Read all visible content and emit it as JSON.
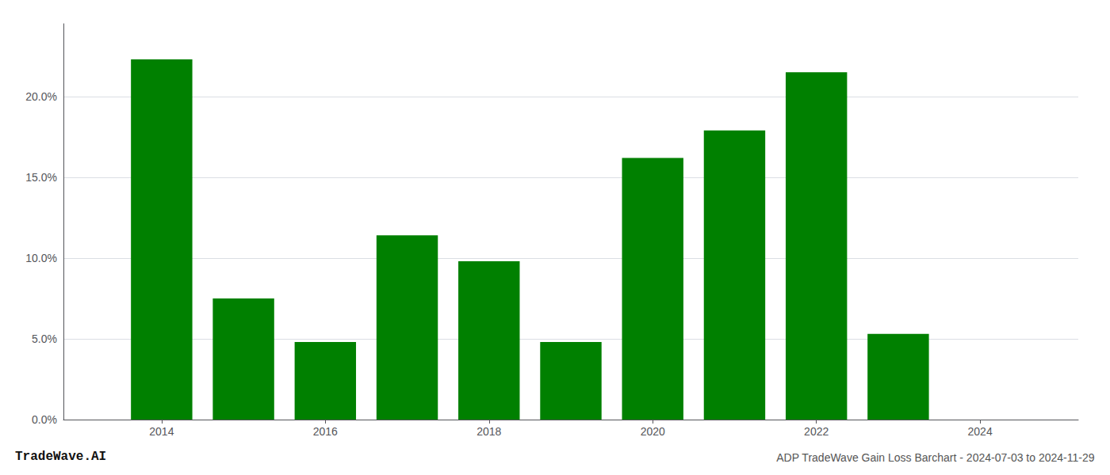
{
  "chart_data": {
    "type": "bar",
    "title": "ADP TradeWave Gain Loss Barchart - 2024-07-03 to 2024-11-29",
    "annotations": [
      "TradeWave.AI"
    ],
    "x": [
      2014,
      2015,
      2016,
      2017,
      2018,
      2019,
      2020,
      2021,
      2022,
      2023
    ],
    "values": [
      0.223,
      0.075,
      0.048,
      0.114,
      0.098,
      0.048,
      0.162,
      0.179,
      0.215,
      0.053
    ],
    "color": "#008000",
    "xlim": [
      2012.8,
      2025.2
    ],
    "xticks": [
      2014,
      2016,
      2018,
      2020,
      2022,
      2024
    ],
    "ylim": [
      0.0,
      0.245
    ],
    "yticks": [
      {
        "value": 0.0,
        "label": "0.0%"
      },
      {
        "value": 0.05,
        "label": "5.0%"
      },
      {
        "value": 0.1,
        "label": "10.0%"
      },
      {
        "value": 0.15,
        "label": "15.0%"
      },
      {
        "value": 0.2,
        "label": "20.0%"
      }
    ],
    "grid": true
  }
}
